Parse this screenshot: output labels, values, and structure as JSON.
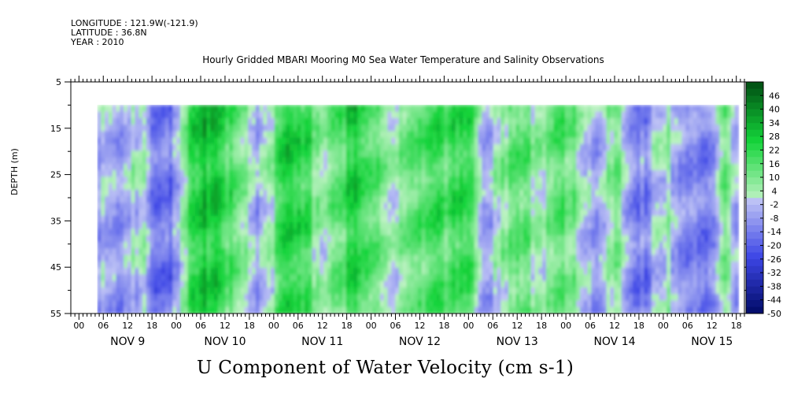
{
  "meta": {
    "longitude": "LONGITUDE : 121.9W(-121.9)",
    "latitude": "LATITUDE : 36.8N",
    "year": "YEAR : 2010"
  },
  "chart_data": {
    "type": "heatmap",
    "title": "Hourly Gridded MBARI Mooring M0 Sea Water Temperature and Salinity Observations",
    "xlabel": "U Component of Water Velocity (cm s-1)",
    "ylabel": "DEPTH (m)",
    "yticks": [
      "5",
      "15",
      "25",
      "35",
      "45",
      "55"
    ],
    "ylim": [
      5,
      55
    ],
    "data_depth_range": [
      10,
      55
    ],
    "hour_ticks": [
      "00",
      "06",
      "12",
      "18",
      "00",
      "06",
      "12",
      "18",
      "00",
      "06",
      "12",
      "18",
      "00",
      "06",
      "12",
      "18",
      "00",
      "06",
      "12",
      "18",
      "00",
      "06",
      "12",
      "18",
      "00",
      "06",
      "12",
      "18"
    ],
    "day_labels": [
      "NOV  9",
      "NOV 10",
      "NOV 11",
      "NOV 12",
      "NOV 13",
      "NOV 14",
      "NOV 15"
    ],
    "x_range_hours_from_nov9_00": [
      -2,
      164
    ],
    "data_start_hour": 4.5,
    "colorbar_labels": [
      "46",
      "40",
      "34",
      "28",
      "22",
      "16",
      "10",
      "4",
      "-2",
      "-8",
      "-14",
      "-20",
      "-26",
      "-32",
      "-38",
      "-44",
      "-50"
    ],
    "colorbar_range": [
      -50,
      52
    ],
    "colorbar_step": 3,
    "column_signal": [
      [
        4.5,
        -6
      ],
      [
        8,
        -2
      ],
      [
        10,
        -10
      ],
      [
        13,
        2
      ],
      [
        16,
        4
      ],
      [
        19,
        -12
      ],
      [
        22,
        -14
      ],
      [
        25,
        0
      ],
      [
        28,
        26
      ],
      [
        32,
        30
      ],
      [
        36,
        22
      ],
      [
        40,
        14
      ],
      [
        44,
        -2
      ],
      [
        48,
        10
      ],
      [
        50,
        24
      ],
      [
        53,
        30
      ],
      [
        57,
        18
      ],
      [
        60,
        2
      ],
      [
        63,
        12
      ],
      [
        66,
        22
      ],
      [
        69,
        26
      ],
      [
        72,
        20
      ],
      [
        75,
        8
      ],
      [
        78,
        4
      ],
      [
        81,
        18
      ],
      [
        84,
        14
      ],
      [
        88,
        24
      ],
      [
        91,
        18
      ],
      [
        95,
        26
      ],
      [
        98,
        14
      ],
      [
        100,
        -6
      ],
      [
        104,
        8
      ],
      [
        107,
        14
      ],
      [
        110,
        18
      ],
      [
        113,
        4
      ],
      [
        116,
        10
      ],
      [
        118,
        22
      ],
      [
        121,
        14
      ],
      [
        124,
        4
      ],
      [
        127,
        -8
      ],
      [
        130,
        4
      ],
      [
        133,
        10
      ],
      [
        136,
        -6
      ],
      [
        139,
        -12
      ],
      [
        142,
        -2
      ],
      [
        145,
        6
      ],
      [
        148,
        -4
      ],
      [
        151,
        -10
      ],
      [
        154,
        -14
      ],
      [
        157,
        -2
      ],
      [
        160,
        14
      ],
      [
        162,
        -6
      ],
      [
        164,
        -8
      ]
    ]
  },
  "colors": {
    "negative_deep": "#000a66",
    "negative_mid": "#3d46e6",
    "negative_light": "#bfc4f5",
    "positive_light": "#bff3c4",
    "positive_mid": "#14d43a",
    "positive_deep": "#004d12"
  }
}
